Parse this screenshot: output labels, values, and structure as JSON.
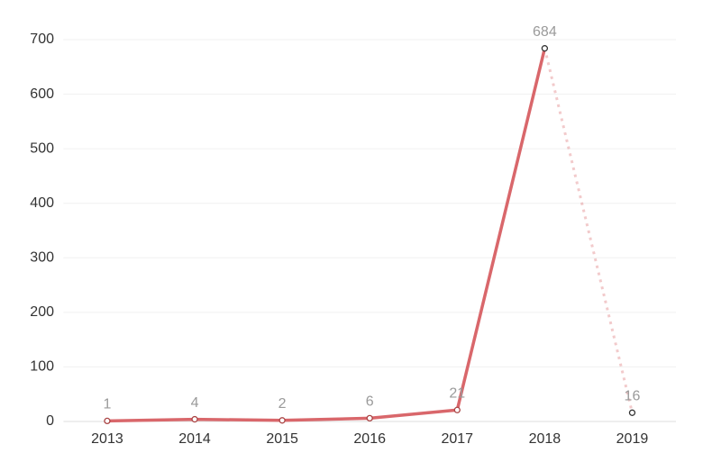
{
  "chart_data": {
    "type": "line",
    "categories": [
      "2013",
      "2014",
      "2015",
      "2016",
      "2017",
      "2018",
      "2019"
    ],
    "values": [
      1,
      4,
      2,
      6,
      21,
      684,
      16
    ],
    "color": "#d9676b",
    "last_segment_style": "dotted",
    "ylim": [
      0,
      700
    ],
    "yticks": [
      0,
      100,
      200,
      300,
      400,
      500,
      600,
      700
    ],
    "grid": true
  }
}
